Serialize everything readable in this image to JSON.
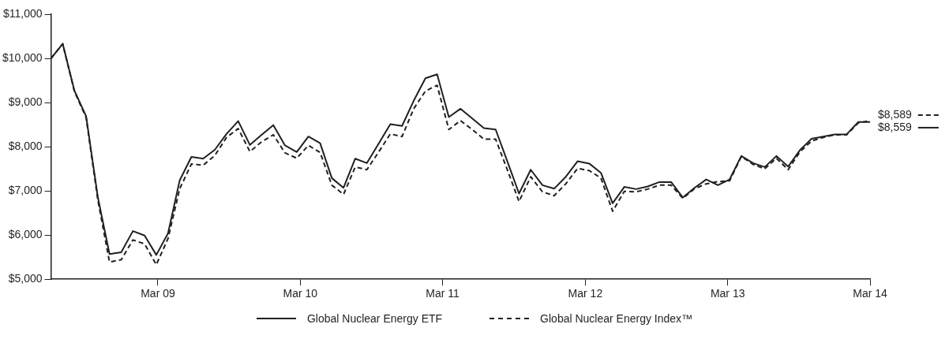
{
  "chart_data": {
    "type": "line",
    "x": [
      "2008-06-30",
      "2008-07-30",
      "2008-08-29",
      "2008-09-28",
      "2008-10-28",
      "2008-11-27",
      "2008-12-27",
      "2009-01-26",
      "2009-02-25",
      "2009-03-27",
      "2009-04-26",
      "2009-05-26",
      "2009-06-25",
      "2009-07-25",
      "2009-08-24",
      "2009-09-23",
      "2009-10-23",
      "2009-11-22",
      "2009-12-22",
      "2010-01-21",
      "2010-02-20",
      "2010-03-22",
      "2010-04-21",
      "2010-05-21",
      "2010-06-20",
      "2010-07-20",
      "2010-08-19",
      "2010-09-18",
      "2010-10-18",
      "2010-11-17",
      "2010-12-17",
      "2011-01-16",
      "2011-02-15",
      "2011-03-17",
      "2011-04-16",
      "2011-05-16",
      "2011-06-15",
      "2011-07-15",
      "2011-08-14",
      "2011-09-13",
      "2011-10-13",
      "2011-11-12",
      "2011-12-12",
      "2012-01-11",
      "2012-02-10",
      "2012-03-11",
      "2012-04-10",
      "2012-05-10",
      "2012-06-09",
      "2012-07-09",
      "2012-08-08",
      "2012-09-07",
      "2012-10-07",
      "2012-11-06",
      "2012-12-06",
      "2013-01-05",
      "2013-02-04",
      "2013-03-06",
      "2013-04-05",
      "2013-05-05",
      "2013-06-04",
      "2013-07-04",
      "2013-08-03",
      "2013-09-02",
      "2013-10-02",
      "2013-11-01",
      "2013-12-01",
      "2013-12-31",
      "2014-01-30",
      "2014-03-01",
      "2014-03-31"
    ],
    "series": [
      {
        "name": "Global Nuclear Energy ETF",
        "color": "#231f20",
        "line_style": "solid",
        "values": [
          10000,
          10330,
          9270,
          8690,
          6860,
          5570,
          5610,
          6090,
          5990,
          5550,
          6040,
          7240,
          7770,
          7730,
          7930,
          8290,
          8580,
          8040,
          8270,
          8490,
          8030,
          7880,
          8230,
          8080,
          7290,
          7070,
          7730,
          7630,
          8070,
          8510,
          8470,
          9040,
          9550,
          9640,
          8670,
          8860,
          8640,
          8420,
          8390,
          7670,
          6940,
          7480,
          7130,
          7050,
          7320,
          7670,
          7620,
          7410,
          6720,
          7090,
          7040,
          7100,
          7200,
          7200,
          6850,
          7070,
          7260,
          7130,
          7260,
          7790,
          7630,
          7540,
          7790,
          7550,
          7920,
          8180,
          8230,
          8280,
          8280,
          8560,
          8559
        ]
      },
      {
        "name": "Global Nuclear Energy Index™",
        "color": "#231f20",
        "line_style": "dashed",
        "values": [
          10000,
          10330,
          9250,
          8660,
          6800,
          5390,
          5440,
          5890,
          5800,
          5330,
          5920,
          7050,
          7610,
          7580,
          7800,
          8210,
          8410,
          7890,
          8110,
          8270,
          7860,
          7740,
          8030,
          7870,
          7130,
          6920,
          7540,
          7480,
          7880,
          8290,
          8230,
          8860,
          9260,
          9390,
          8390,
          8590,
          8390,
          8170,
          8170,
          7480,
          6760,
          7320,
          6980,
          6890,
          7160,
          7510,
          7460,
          7290,
          6540,
          6990,
          6980,
          7040,
          7130,
          7130,
          6830,
          7050,
          7160,
          7210,
          7230,
          7780,
          7600,
          7500,
          7740,
          7480,
          7880,
          8130,
          8210,
          8270,
          8270,
          8540,
          8589
        ]
      }
    ],
    "xlim": [
      "2008-06-30",
      "2014-03-31"
    ],
    "xticks": [
      {
        "value": "2009-03-31",
        "label": "Mar 09"
      },
      {
        "value": "2010-03-31",
        "label": "Mar 10"
      },
      {
        "value": "2011-03-31",
        "label": "Mar 11"
      },
      {
        "value": "2012-03-31",
        "label": "Mar 12"
      },
      {
        "value": "2013-03-31",
        "label": "Mar 13"
      },
      {
        "value": "2014-03-31",
        "label": "Mar 14"
      }
    ],
    "ylim": [
      5000,
      11000
    ],
    "yticks": [
      {
        "value": 5000,
        "label": "$5,000"
      },
      {
        "value": 6000,
        "label": "$6,000"
      },
      {
        "value": 7000,
        "label": "$7,000"
      },
      {
        "value": 8000,
        "label": "$8,000"
      },
      {
        "value": 9000,
        "label": "$9,000"
      },
      {
        "value": 10000,
        "label": "$10,000"
      },
      {
        "value": 11000,
        "label": "$11,000"
      }
    ],
    "annotations": [
      {
        "text": "$8,589",
        "x": "2014-03-31",
        "y": 8589
      },
      {
        "text": "$8,559",
        "x": "2014-03-31",
        "y": 8559
      }
    ],
    "grid": false,
    "legend": "bottom",
    "marker": "none"
  }
}
